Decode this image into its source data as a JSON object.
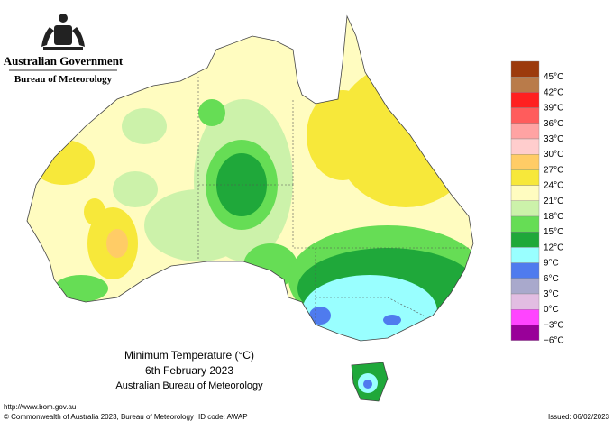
{
  "header": {
    "government": "Australian Government",
    "agency": "Bureau of Meteorology"
  },
  "legend": [
    {
      "label": "45°C",
      "color": "#9c3a0c"
    },
    {
      "label": "42°C",
      "color": "#b97b4a"
    },
    {
      "label": "39°C",
      "color": "#ff2020"
    },
    {
      "label": "36°C",
      "color": "#ff5c5c"
    },
    {
      "label": "33°C",
      "color": "#ffa3a3"
    },
    {
      "label": "30°C",
      "color": "#ffcdcd"
    },
    {
      "label": "27°C",
      "color": "#ffcc66"
    },
    {
      "label": "24°C",
      "color": "#f7e83a"
    },
    {
      "label": "21°C",
      "color": "#fffcc0"
    },
    {
      "label": "18°C",
      "color": "#ccf2aa"
    },
    {
      "label": "15°C",
      "color": "#66dd55"
    },
    {
      "label": "12°C",
      "color": "#1fa83a"
    },
    {
      "label": "9°C",
      "color": "#99ffff"
    },
    {
      "label": "6°C",
      "color": "#4f7bee"
    },
    {
      "label": "3°C",
      "color": "#a9a9cc"
    },
    {
      "label": "0°C",
      "color": "#e2bde2"
    },
    {
      "label": "−3°C",
      "color": "#ff44ff"
    },
    {
      "label": "−6°C",
      "color": "#990099"
    }
  ],
  "title": {
    "line1": "Minimum Temperature (°C)",
    "line2": "6th February 2023",
    "line3": "Australian Bureau of Meteorology"
  },
  "footer": {
    "url": "http://www.bom.gov.au",
    "copyright": "© Commonwealth of Australia 2023, Bureau of Meteorology",
    "id_code": "ID code: AWAP",
    "issued": "Issued: 06/02/2023"
  }
}
